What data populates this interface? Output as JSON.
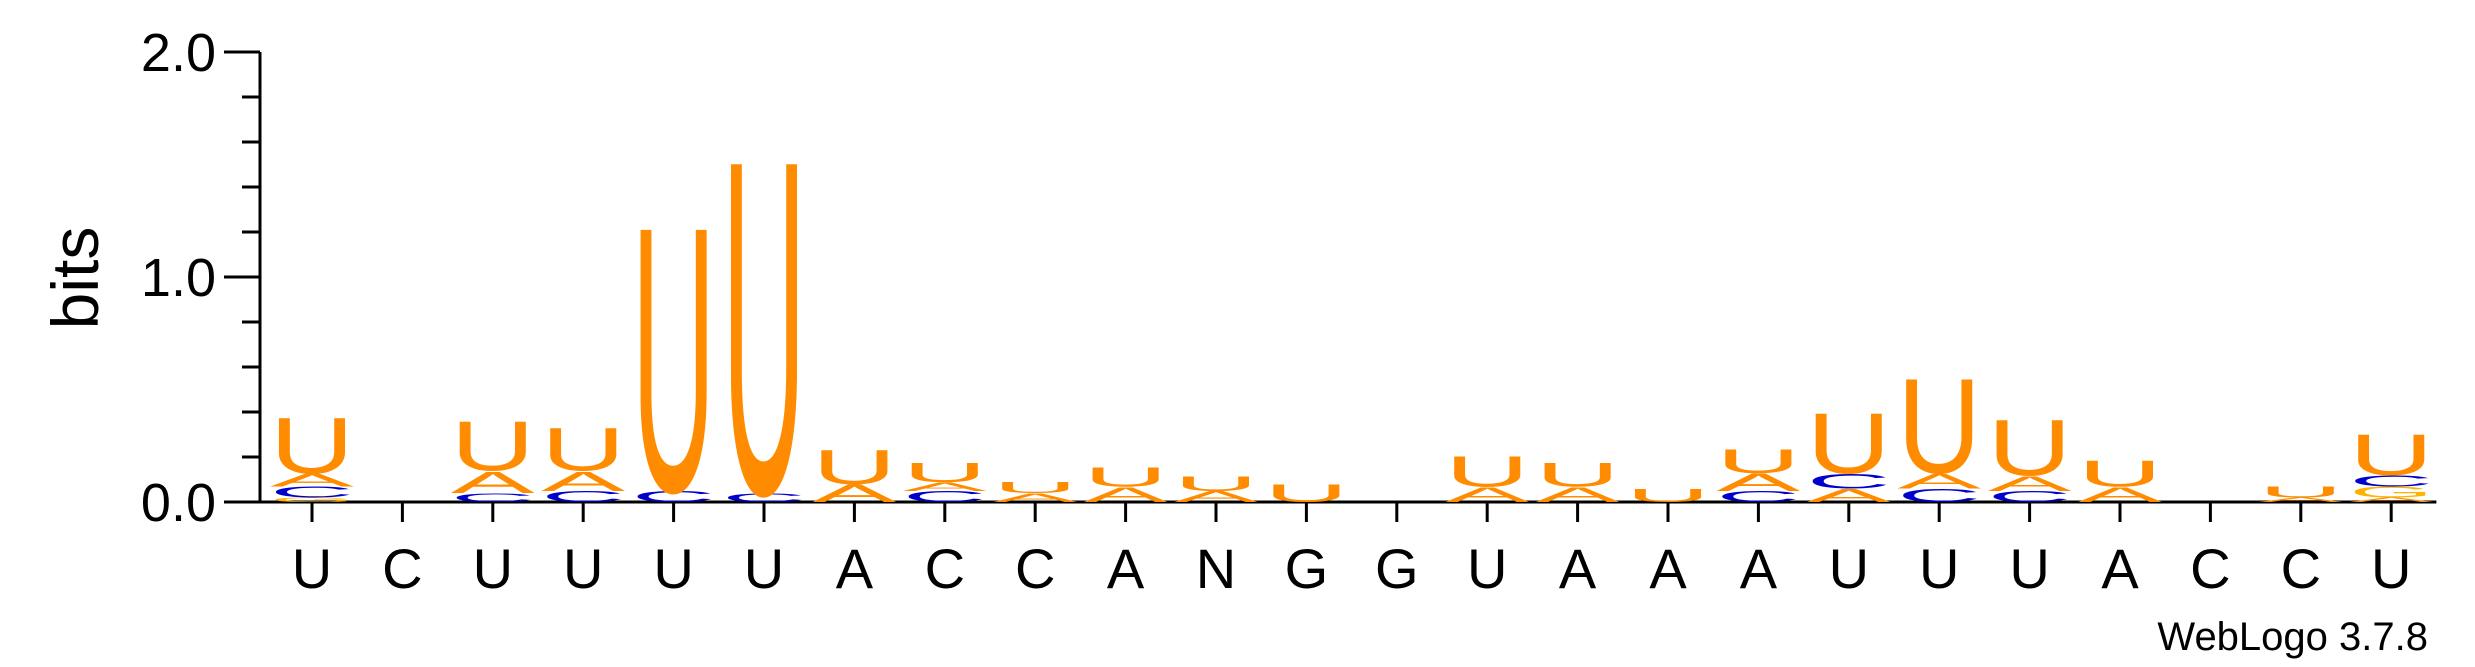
{
  "chart_data": {
    "type": "sequence_logo",
    "ylabel": "bits",
    "ylim": [
      0,
      2.0
    ],
    "yticks": [
      {
        "value": 0.0,
        "label": "0.0"
      },
      {
        "value": 1.0,
        "label": "1.0"
      },
      {
        "value": 2.0,
        "label": "2.0"
      }
    ],
    "colors": {
      "U": "#FF8C00",
      "A": "#FF8C00",
      "C": "#0000CC",
      "G": "#FFB300"
    },
    "consensus": [
      "U",
      "C",
      "U",
      "U",
      "U",
      "U",
      "A",
      "C",
      "C",
      "A",
      "N",
      "G",
      "G",
      "U",
      "A",
      "A",
      "A",
      "U",
      "U",
      "U",
      "A",
      "C",
      "C",
      "U"
    ],
    "stacks": [
      [
        {
          "letter": "G",
          "bits": 0.02
        },
        {
          "letter": "C",
          "bits": 0.05
        },
        {
          "letter": "A",
          "bits": 0.06
        },
        {
          "letter": "U",
          "bits": 0.26
        }
      ],
      [],
      [
        {
          "letter": "C",
          "bits": 0.04
        },
        {
          "letter": "A",
          "bits": 0.1
        },
        {
          "letter": "U",
          "bits": 0.23
        }
      ],
      [
        {
          "letter": "C",
          "bits": 0.05
        },
        {
          "letter": "A",
          "bits": 0.09
        },
        {
          "letter": "U",
          "bits": 0.2
        }
      ],
      [
        {
          "letter": "C",
          "bits": 0.05
        },
        {
          "letter": "U",
          "bits": 1.23
        }
      ],
      [
        {
          "letter": "C",
          "bits": 0.04
        },
        {
          "letter": "U",
          "bits": 1.55
        }
      ],
      [
        {
          "letter": "A",
          "bits": 0.08
        },
        {
          "letter": "U",
          "bits": 0.16
        }
      ],
      [
        {
          "letter": "C",
          "bits": 0.05
        },
        {
          "letter": "A",
          "bits": 0.04
        },
        {
          "letter": "U",
          "bits": 0.09
        }
      ],
      [
        {
          "letter": "A",
          "bits": 0.04
        },
        {
          "letter": "U",
          "bits": 0.05
        }
      ],
      [
        {
          "letter": "A",
          "bits": 0.07
        },
        {
          "letter": "U",
          "bits": 0.09
        }
      ],
      [
        {
          "letter": "A",
          "bits": 0.05
        },
        {
          "letter": "U",
          "bits": 0.07
        }
      ],
      [
        {
          "letter": "U",
          "bits": 0.08
        }
      ],
      [],
      [
        {
          "letter": "A",
          "bits": 0.07
        },
        {
          "letter": "U",
          "bits": 0.14
        }
      ],
      [
        {
          "letter": "A",
          "bits": 0.07
        },
        {
          "letter": "U",
          "bits": 0.11
        }
      ],
      [
        {
          "letter": "U",
          "bits": 0.06
        }
      ],
      [
        {
          "letter": "C",
          "bits": 0.05
        },
        {
          "letter": "A",
          "bits": 0.08
        },
        {
          "letter": "U",
          "bits": 0.11
        }
      ],
      [
        {
          "letter": "A",
          "bits": 0.06
        },
        {
          "letter": "C",
          "bits": 0.07
        },
        {
          "letter": "U",
          "bits": 0.28
        }
      ],
      [
        {
          "letter": "C",
          "bits": 0.06
        },
        {
          "letter": "A",
          "bits": 0.07
        },
        {
          "letter": "U",
          "bits": 0.44
        }
      ],
      [
        {
          "letter": "C",
          "bits": 0.05
        },
        {
          "letter": "A",
          "bits": 0.07
        },
        {
          "letter": "U",
          "bits": 0.26
        }
      ],
      [
        {
          "letter": "A",
          "bits": 0.07
        },
        {
          "letter": "U",
          "bits": 0.12
        }
      ],
      [],
      [
        {
          "letter": "A",
          "bits": 0.02
        },
        {
          "letter": "U",
          "bits": 0.05
        }
      ],
      [
        {
          "letter": "A",
          "bits": 0.02
        },
        {
          "letter": "G",
          "bits": 0.05
        },
        {
          "letter": "C",
          "bits": 0.05
        },
        {
          "letter": "U",
          "bits": 0.19
        }
      ]
    ]
  },
  "footer": {
    "credit": "WebLogo 3.7.8"
  }
}
